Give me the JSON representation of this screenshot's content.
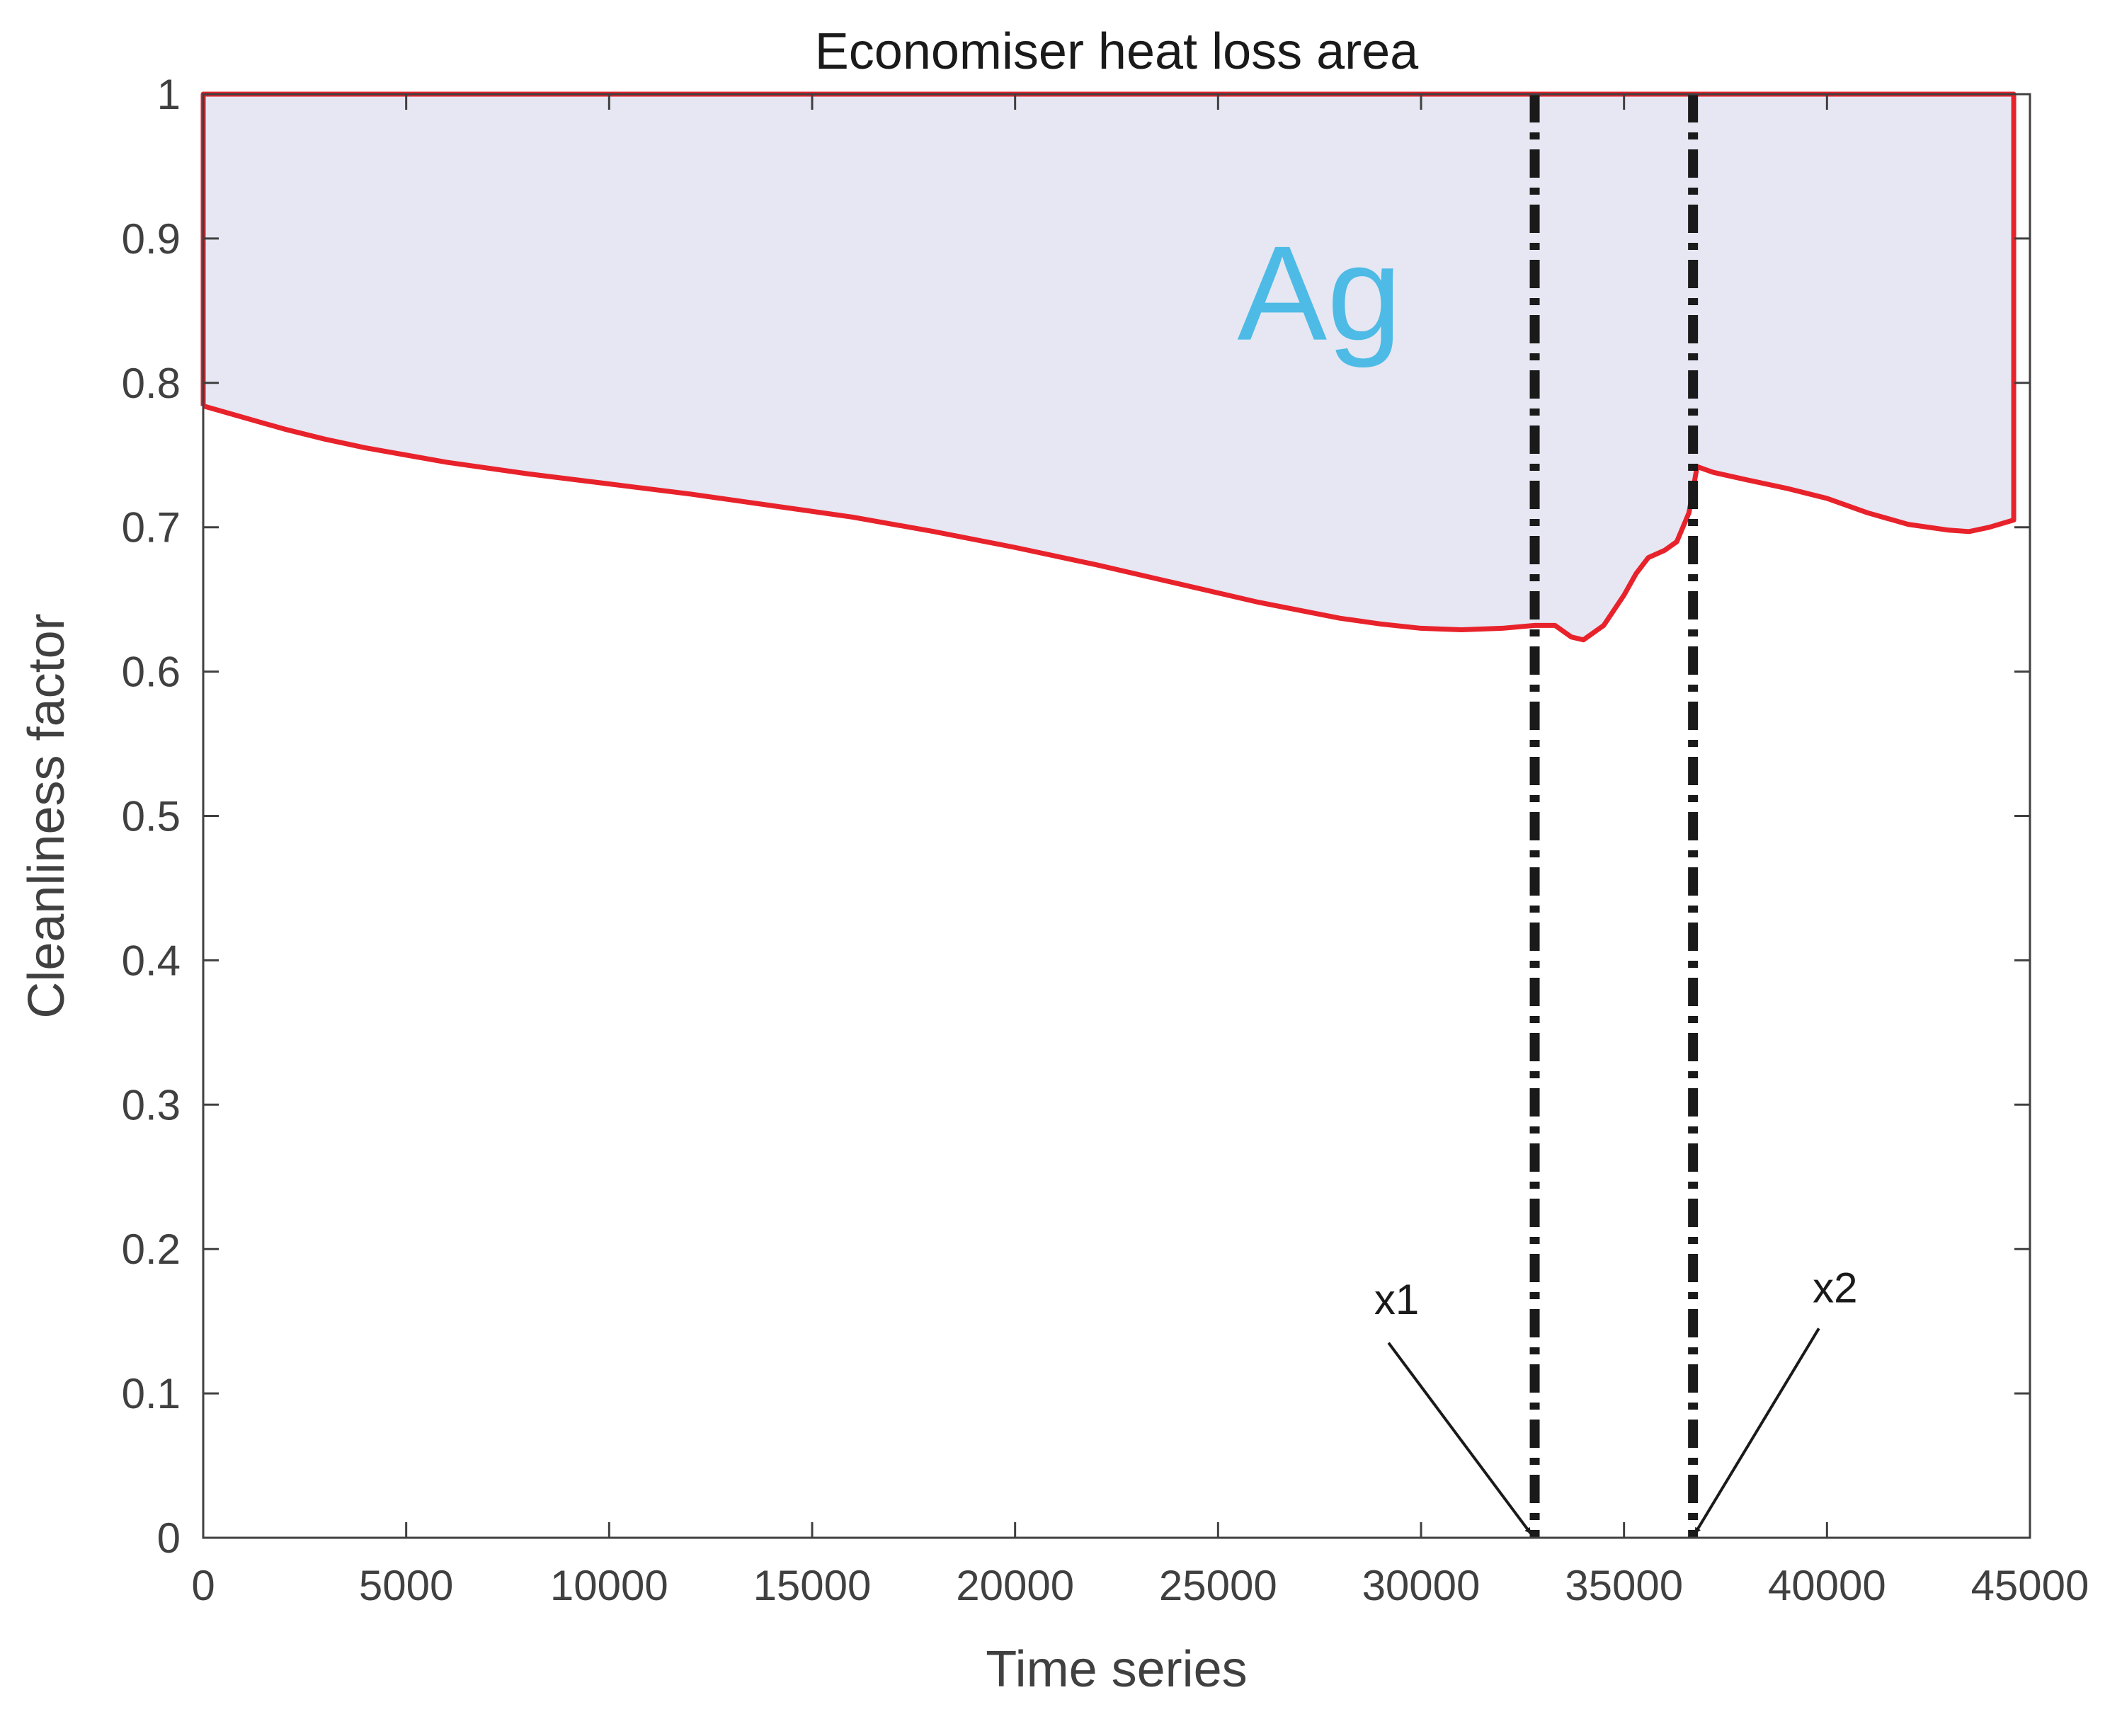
{
  "chart_data": {
    "type": "area",
    "title": "Economiser heat loss area",
    "xlabel": "Time series",
    "ylabel": "Cleanliness factor",
    "xlim": [
      0,
      45000
    ],
    "ylim": [
      0,
      1
    ],
    "xticks": [
      0,
      5000,
      10000,
      15000,
      20000,
      25000,
      30000,
      35000,
      40000,
      45000
    ],
    "xtick_labels": [
      "0",
      "5000",
      "10000",
      "15000",
      "20000",
      "25000",
      "30000",
      "35000",
      "40000",
      "45000"
    ],
    "yticks": [
      0,
      0.1,
      0.2,
      0.3,
      0.4,
      0.5,
      0.6,
      0.7,
      0.8,
      0.9,
      1
    ],
    "ytick_labels": [
      "0",
      "0.1",
      "0.2",
      "0.3",
      "0.4",
      "0.5",
      "0.6",
      "0.7",
      "0.8",
      "0.9",
      "1"
    ],
    "grid": false,
    "colors": {
      "curve": "#e8222b",
      "fill": "#e6e7f2",
      "marker_lines": "#1a1a1a",
      "region_label": "#4dbbe6"
    },
    "region_label": "Ag",
    "region_label_at": {
      "x": 27500,
      "y": 0.83
    },
    "upper_bound": 1,
    "series": [
      {
        "x": [
          0,
          1000,
          2000,
          3000,
          4000,
          5000,
          6000,
          8000,
          10000,
          12000,
          14000,
          16000,
          18000,
          20000,
          22000,
          24000,
          26000,
          28000,
          29000,
          30000,
          31000,
          32000,
          32800,
          33300,
          33700,
          34000,
          34500,
          35000,
          35300,
          35600,
          36000,
          36300,
          36600,
          36800,
          37200,
          38000,
          39000,
          40000,
          41000,
          42000,
          43000,
          43500,
          44000,
          44600
        ],
        "y": [
          0.784,
          0.776,
          0.768,
          0.761,
          0.755,
          0.75,
          0.745,
          0.737,
          0.73,
          0.723,
          0.715,
          0.707,
          0.697,
          0.686,
          0.674,
          0.661,
          0.648,
          0.637,
          0.633,
          0.63,
          0.629,
          0.63,
          0.632,
          0.632,
          0.624,
          0.622,
          0.632,
          0.653,
          0.668,
          0.679,
          0.684,
          0.69,
          0.71,
          0.742,
          0.738,
          0.733,
          0.727,
          0.72,
          0.71,
          0.702,
          0.698,
          0.697,
          0.7,
          0.705
        ]
      }
    ],
    "vertical_lines": [
      {
        "x": 32800,
        "style": "dash-dot"
      },
      {
        "x": 36700,
        "style": "dash-dot"
      }
    ],
    "annotations": [
      {
        "text": "x1",
        "text_at": {
          "x": 29400,
          "y": 0.155
        },
        "from": {
          "x": 29200,
          "y": 0.135
        },
        "to": {
          "x": 32700,
          "y": 0.003
        }
      },
      {
        "text": "x2",
        "text_at": {
          "x": 40200,
          "y": 0.163
        },
        "from": {
          "x": 39800,
          "y": 0.145
        },
        "to": {
          "x": 36750,
          "y": 0.003
        }
      }
    ]
  }
}
